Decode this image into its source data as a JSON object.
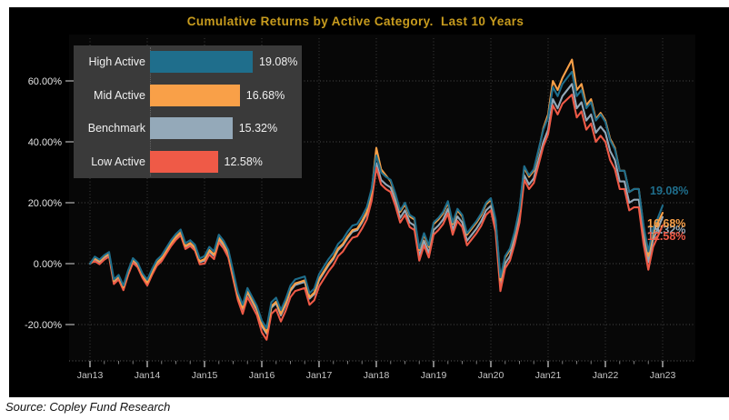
{
  "footer": {
    "text": "Source: Copley Fund Research"
  },
  "chart_data": {
    "type": "line",
    "title": "Cumulative Returns by Active Category.  Last 10 Years",
    "title_color": "#c89c1e",
    "background_color": "#000000",
    "plot_background_color": "#070707",
    "gridline_color": "#4a4a4a",
    "axis_label_color": "#d6d6d6",
    "grid": "dotted, horizontal every 20%, vertical every January",
    "legend_position": "inset top-left",
    "x_unit": "monthly points from Jan 2013 to Jan 2023",
    "x_labels": [
      "Jan13",
      "Jan14",
      "Jan15",
      "Jan16",
      "Jan17",
      "Jan18",
      "Jan19",
      "Jan20",
      "Jan21",
      "Jan22",
      "Jan23"
    ],
    "x_minor_ticks_between_years": 3,
    "y_ticks": [
      {
        "value": 60,
        "label": "60.00%"
      },
      {
        "value": 40,
        "label": "40.00%"
      },
      {
        "value": 20,
        "label": "20.00%"
      },
      {
        "value": 0,
        "label": "0.00%"
      },
      {
        "value": -20,
        "label": "-20.00%"
      }
    ],
    "ylim": [
      -33,
      73
    ],
    "legend": {
      "items": [
        {
          "label": "High Active",
          "value": "19.08%"
        },
        {
          "label": "Mid Active",
          "value": "16.68%"
        },
        {
          "label": "Benchmark",
          "value": "15.32%"
        },
        {
          "label": "Low Active",
          "value": "12.58%"
        }
      ]
    },
    "series": [
      {
        "name": "High Active",
        "color": "#1f6e8c",
        "end_label": "19.08%",
        "end_value": 19.08,
        "values": [
          0,
          2.3,
          1.3,
          2.8,
          3.8,
          -5.2,
          -3.7,
          -7.2,
          -2.2,
          1.8,
          0.3,
          -3.2,
          -5.3,
          -1.8,
          1.2,
          2.7,
          5.2,
          7.7,
          9.7,
          11.2,
          6.7,
          7.7,
          6.2,
          1.7,
          2.5,
          5.5,
          4,
          9.5,
          7.5,
          4.5,
          -2.5,
          -9.5,
          -13.5,
          -8,
          -11,
          -14,
          -18.7,
          -21.2,
          -12.7,
          -11.2,
          -15.2,
          -11.7,
          -7.2,
          -5.2,
          -4.7,
          -4.2,
          -9.7,
          -8.2,
          -3.5,
          -1,
          1.5,
          3.5,
          6.5,
          8,
          10.5,
          12.5,
          13,
          15.5,
          18.5,
          24.5,
          35.5,
          30,
          28.5,
          27.5,
          23,
          17.5,
          20,
          16,
          15,
          5,
          10,
          6,
          13.5,
          15,
          17,
          20.5,
          13.5,
          18,
          16,
          10,
          12,
          14,
          16.5,
          20,
          21.5,
          14.5,
          -4.5,
          2.5,
          5,
          10.5,
          18,
          32,
          29,
          31,
          37.5,
          44,
          48,
          58,
          55,
          59,
          61,
          63,
          55,
          57,
          51,
          53,
          47,
          49,
          46.5,
          40.5,
          37.5,
          30.5,
          30.5,
          23.5,
          24.5,
          24.5,
          12.5,
          4,
          11.5,
          15,
          19.08
        ]
      },
      {
        "name": "Mid Active",
        "color": "#f9a048",
        "end_label": "16.68%",
        "end_value": 16.68,
        "values": [
          0,
          1.8,
          0.8,
          2.3,
          3.3,
          -5.7,
          -4.2,
          -7.7,
          -2.7,
          1.3,
          -0.2,
          -3.7,
          -6.2,
          -2.7,
          0.3,
          1.8,
          4.3,
          6.8,
          8.8,
          10.3,
          5.8,
          6.8,
          5.3,
          0.8,
          1.5,
          4.5,
          3,
          8.5,
          6.5,
          3.5,
          -3.5,
          -10.5,
          -14.5,
          -9,
          -12,
          -15,
          -20,
          -22.5,
          -14,
          -12.5,
          -16.5,
          -13,
          -8.5,
          -6.5,
          -6,
          -5.5,
          -11,
          -9.5,
          -5,
          -2.5,
          0,
          2,
          5,
          6.5,
          9,
          11,
          11.5,
          14,
          17,
          23.5,
          38,
          31,
          29,
          27,
          22.5,
          17,
          19.5,
          15.5,
          14.5,
          4.5,
          9.5,
          5.5,
          13,
          14.5,
          16.5,
          20,
          13,
          17.5,
          15.5,
          9.5,
          11.5,
          13.5,
          16,
          19.5,
          21,
          14,
          -5.5,
          2,
          4.5,
          10,
          17.5,
          31.5,
          28.5,
          30.5,
          37,
          44.5,
          49,
          60,
          57,
          61,
          64,
          67,
          57,
          59,
          52,
          54,
          47.5,
          49.5,
          47,
          41,
          38,
          30.5,
          30.5,
          23.5,
          24.5,
          24.5,
          12,
          2.5,
          10,
          13.5,
          16.68
        ]
      },
      {
        "name": "Benchmark",
        "color": "#94a9b9",
        "end_label": "15.32%",
        "end_value": 15.32,
        "values": [
          0,
          1.5,
          0.5,
          2,
          3,
          -6,
          -4.5,
          -8,
          -3,
          1,
          -0.5,
          -4,
          -6.5,
          -3,
          0,
          1.5,
          4,
          6.5,
          8.5,
          10,
          5.5,
          6.5,
          5,
          0.5,
          1,
          4,
          2.5,
          8,
          6,
          3,
          -4,
          -11,
          -15,
          -9.5,
          -12.5,
          -15.5,
          -20.5,
          -23,
          -14.5,
          -13,
          -17,
          -13.5,
          -9,
          -7,
          -6.5,
          -6,
          -11.5,
          -10,
          -5.5,
          -3,
          -0.5,
          1.5,
          4.5,
          6,
          8.5,
          10.5,
          11,
          13.5,
          16.5,
          22.5,
          33,
          27.5,
          26,
          25,
          20.5,
          15,
          17.5,
          13.5,
          12.5,
          2.5,
          7.5,
          3.5,
          11,
          12.5,
          14.5,
          18,
          11,
          15.5,
          13.5,
          7.5,
          9.5,
          11.5,
          14,
          17.5,
          19,
          12,
          -7,
          0,
          2.5,
          8,
          15,
          29,
          26,
          28,
          34,
          40,
          44,
          54,
          51,
          55,
          57,
          59,
          51,
          53,
          47,
          49,
          43,
          45,
          43,
          37,
          34,
          27,
          27,
          20,
          21,
          21,
          9,
          0.5,
          8,
          11.5,
          15.32
        ]
      },
      {
        "name": "Low Active",
        "color": "#ef5a47",
        "end_label": "12.58%",
        "end_value": 12.58,
        "values": [
          0,
          0.8,
          -0.2,
          1.3,
          2.3,
          -6.7,
          -5.2,
          -8.7,
          -3.7,
          0.3,
          -1.2,
          -4.7,
          -7.2,
          -3.7,
          -0.7,
          0.8,
          3.3,
          5.8,
          7.8,
          9.3,
          4.8,
          5.8,
          4.3,
          -0.2,
          0,
          3,
          1.5,
          7,
          5,
          2,
          -5,
          -12,
          -16.5,
          -11,
          -14,
          -17,
          -22.5,
          -25,
          -16.5,
          -15,
          -19,
          -15.5,
          -11,
          -9,
          -8.5,
          -8,
          -13.5,
          -12,
          -7.5,
          -5,
          -2.5,
          -0.5,
          2.5,
          4,
          6.5,
          8.5,
          9,
          11.5,
          14.5,
          20.5,
          31.5,
          26,
          24.5,
          23.5,
          19,
          13.5,
          16,
          12,
          11,
          1,
          6,
          2,
          9.5,
          11,
          13,
          16.5,
          9.5,
          14,
          12,
          6,
          8,
          10,
          12.5,
          16,
          17.5,
          10.5,
          -9,
          -1.5,
          1,
          6.5,
          13.5,
          27.5,
          24.5,
          26.5,
          32.5,
          38.5,
          42.5,
          52,
          49,
          52.5,
          54,
          55.5,
          48,
          50,
          44,
          46,
          40,
          42,
          40,
          34,
          31,
          24.5,
          24.5,
          17.5,
          18.5,
          18.5,
          6.5,
          -2,
          5.5,
          9,
          12.58
        ]
      }
    ]
  }
}
